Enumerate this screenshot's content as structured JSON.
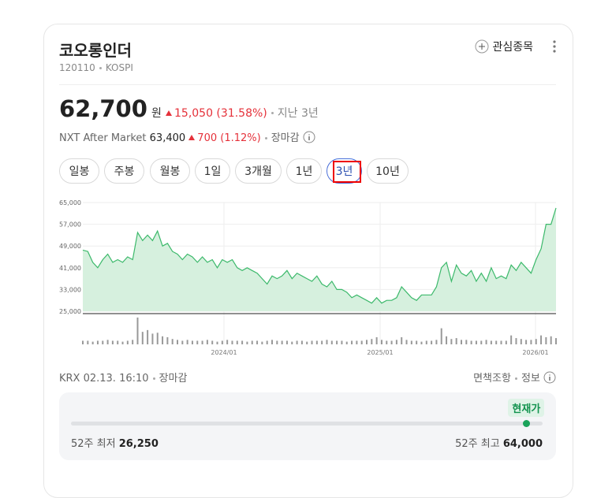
{
  "header": {
    "name": "코오롱인더",
    "code": "120110",
    "market": "KOSPI",
    "watch": "관심종목"
  },
  "price": {
    "value": "62,700",
    "unit": "원",
    "change": "15,050 (31.58%)",
    "period": "지난 3년"
  },
  "after": {
    "label": "NXT After Market",
    "value": "63,400",
    "change": "700 (1.12%)",
    "status": "장마감"
  },
  "tabs": [
    "일봉",
    "주봉",
    "월봉",
    "1일",
    "3개월",
    "1년",
    "3년",
    "10년"
  ],
  "selected_tab": 6,
  "chart": {
    "type": "area",
    "color": "#3cb96b",
    "ylim": [
      25000,
      65000
    ],
    "yticks": [
      {
        "value": 25000,
        "label": "25,000"
      },
      {
        "value": 33000,
        "label": "33,000"
      },
      {
        "value": 41000,
        "label": "41,000"
      },
      {
        "value": 49000,
        "label": "49,000"
      },
      {
        "value": 57000,
        "label": "57,000"
      },
      {
        "value": 65000,
        "label": "65,000"
      }
    ],
    "xlabels": [
      "2024/01",
      "2025/01",
      "2026/01"
    ],
    "values": [
      47500,
      47000,
      43000,
      41000,
      44000,
      46000,
      43000,
      44000,
      43000,
      45000,
      44000,
      54000,
      51000,
      53000,
      51000,
      54500,
      49000,
      50000,
      47000,
      46000,
      44000,
      46000,
      45000,
      43000,
      45000,
      43000,
      44000,
      41000,
      44000,
      43000,
      44000,
      41000,
      40000,
      41000,
      40000,
      39000,
      37000,
      35000,
      38000,
      37000,
      38000,
      40000,
      37000,
      39000,
      38000,
      37000,
      36000,
      38000,
      35000,
      34000,
      36000,
      33000,
      33000,
      32000,
      30000,
      31000,
      30000,
      29000,
      28000,
      30000,
      28000,
      29000,
      29000,
      30000,
      34000,
      32000,
      30000,
      29000,
      31000,
      31000,
      31000,
      34000,
      41000,
      43000,
      36000,
      42000,
      39000,
      38000,
      40000,
      36000,
      39000,
      36000,
      41000,
      37000,
      38000,
      37000,
      42000,
      40000,
      43000,
      41000,
      39000,
      44000,
      48000,
      57000,
      57000,
      63000
    ],
    "volume": [
      4,
      4,
      3,
      4,
      4,
      5,
      4,
      4,
      3,
      4,
      5,
      30,
      14,
      16,
      12,
      13,
      9,
      8,
      6,
      5,
      4,
      5,
      4,
      4,
      4,
      5,
      4,
      3,
      4,
      5,
      4,
      4,
      4,
      3,
      4,
      4,
      3,
      4,
      5,
      4,
      4,
      4,
      3,
      4,
      4,
      3,
      4,
      4,
      4,
      5,
      4,
      4,
      4,
      3,
      4,
      4,
      4,
      5,
      6,
      8,
      5,
      4,
      4,
      5,
      8,
      5,
      4,
      4,
      3,
      4,
      4,
      5,
      18,
      9,
      6,
      7,
      5,
      5,
      4,
      4,
      4,
      5,
      4,
      4,
      4,
      4,
      10,
      7,
      6,
      5,
      5,
      6,
      10,
      8,
      9,
      7
    ]
  },
  "footer": {
    "source": "KRX 02.13. 16:10",
    "status": "장마감",
    "disclaimer": "면책조항",
    "info": "정보"
  },
  "range": {
    "current_label": "현재가",
    "low_label": "52주 최저",
    "low": "26,250",
    "high_label": "52주 최고",
    "high": "64,000",
    "current": "62,700"
  }
}
